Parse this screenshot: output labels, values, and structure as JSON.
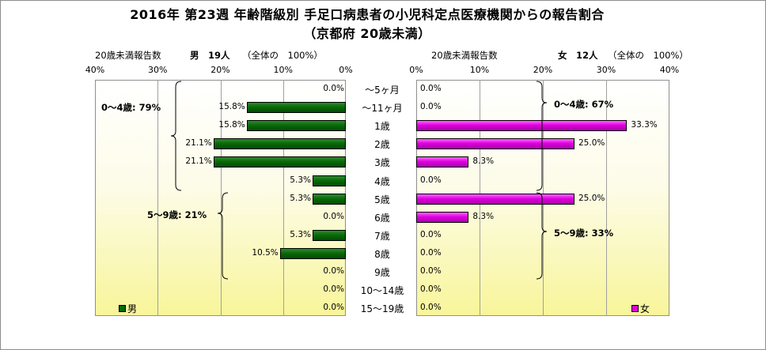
{
  "chart_data": {
    "type": "bar",
    "title": "2016年 第23週 年齢階級別 手足口病患者の小児科定点医療機関からの報告割合",
    "subtitle": "（京都府 20歳未満）",
    "categories": [
      "～5ヶ月",
      "～11ヶ月",
      "1歳",
      "2歳",
      "3歳",
      "4歳",
      "5歳",
      "6歳",
      "7歳",
      "8歳",
      "9歳",
      "10～14歳",
      "15～19歳"
    ],
    "xlim": [
      0,
      40
    ],
    "ticks": [
      "0%",
      "10%",
      "20%",
      "30%",
      "40%"
    ],
    "ticks_left": [
      "40%",
      "30%",
      "20%",
      "10%",
      "0%"
    ],
    "series": [
      {
        "name": "男",
        "header_label": "20歳未満報告数",
        "header_count": "男　19人",
        "header_note": "（全体の　100%）",
        "color": "#0a6a0a",
        "values": [
          0.0,
          15.8,
          15.8,
          21.1,
          21.1,
          5.3,
          5.3,
          0.0,
          5.3,
          10.5,
          0.0,
          0.0,
          0.0
        ],
        "labels": [
          "0.0%",
          "15.8%",
          "15.8%",
          "21.1%",
          "21.1%",
          "5.3%",
          "5.3%",
          "0.0%",
          "5.3%",
          "10.5%",
          "0.0%",
          "0.0%",
          "0.0%"
        ]
      },
      {
        "name": "女",
        "header_label": "20歳未満報告数",
        "header_count": "女　12人",
        "header_note": "（全体の　100%）",
        "color": "#e000e0",
        "values": [
          0.0,
          0.0,
          33.3,
          25.0,
          8.3,
          0.0,
          25.0,
          8.3,
          0.0,
          0.0,
          0.0,
          0.0,
          0.0
        ],
        "labels": [
          "0.0%",
          "0.0%",
          "33.3%",
          "25.0%",
          "8.3%",
          "0.0%",
          "25.0%",
          "8.3%",
          "0.0%",
          "0.0%",
          "0.0%",
          "0.0%",
          "0.0%"
        ]
      }
    ],
    "annotations": {
      "male_0_4": "0～4歳: 79%",
      "male_5_9": "5～9歳: 21%",
      "female_0_4": "0～4歳: 67%",
      "female_5_9": "5～9歳: 33%"
    },
    "legend": {
      "male": "男",
      "female": "女"
    },
    "grid": true
  }
}
